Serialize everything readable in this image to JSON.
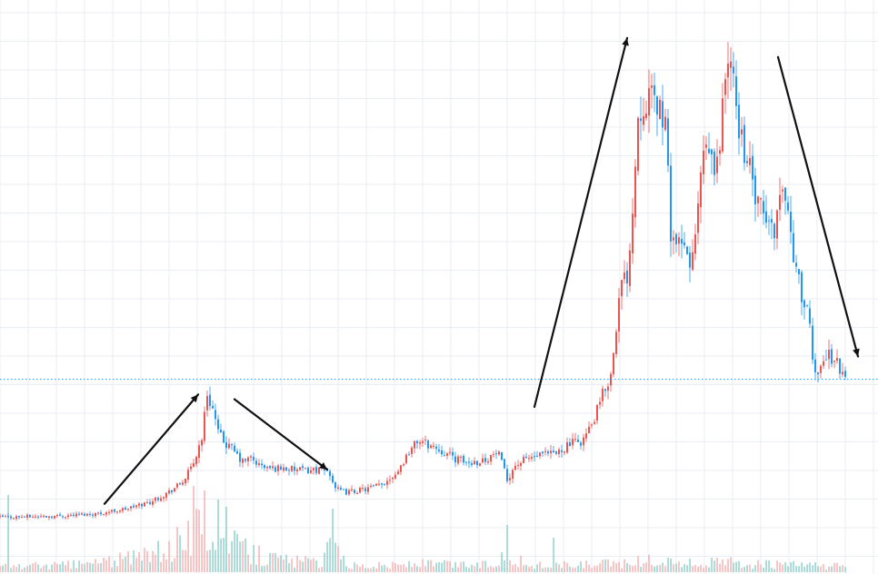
{
  "chart_data": {
    "type": "candlestick",
    "title": "",
    "xlabel": "",
    "ylabel": "",
    "grid": true,
    "legend": "none",
    "ylim": [
      0,
      600
    ],
    "volume_ylim": [
      0,
      120
    ],
    "reference_line": {
      "value": 201,
      "style": "dotted",
      "color": "#2196f3"
    },
    "colors": {
      "up": "#ef5350",
      "down": "#2196f3",
      "vol_up": "#f4a6a6",
      "vol_down": "#80cbc4",
      "grid": "#e8eef3",
      "annotation": "#111111"
    },
    "close_trend": [
      [
        0,
        56
      ],
      [
        60,
        57
      ],
      [
        110,
        60
      ],
      [
        140,
        65
      ],
      [
        165,
        72
      ],
      [
        185,
        82
      ],
      [
        200,
        92
      ],
      [
        212,
        110
      ],
      [
        222,
        140
      ],
      [
        228,
        186
      ],
      [
        234,
        170
      ],
      [
        240,
        145
      ],
      [
        248,
        133
      ],
      [
        256,
        127
      ],
      [
        266,
        114
      ],
      [
        276,
        118
      ],
      [
        286,
        110
      ],
      [
        298,
        107
      ],
      [
        310,
        108
      ],
      [
        322,
        106
      ],
      [
        336,
        105
      ],
      [
        350,
        106
      ],
      [
        362,
        104
      ],
      [
        370,
        85
      ],
      [
        380,
        82
      ],
      [
        400,
        85
      ],
      [
        420,
        90
      ],
      [
        438,
        105
      ],
      [
        450,
        125
      ],
      [
        460,
        137
      ],
      [
        472,
        132
      ],
      [
        486,
        126
      ],
      [
        500,
        118
      ],
      [
        516,
        113
      ],
      [
        532,
        116
      ],
      [
        548,
        124
      ],
      [
        558,
        95
      ],
      [
        566,
        110
      ],
      [
        580,
        118
      ],
      [
        596,
        121
      ],
      [
        612,
        123
      ],
      [
        626,
        133
      ],
      [
        640,
        136
      ],
      [
        652,
        154
      ],
      [
        664,
        188
      ],
      [
        672,
        205
      ],
      [
        678,
        260
      ],
      [
        684,
        302
      ],
      [
        690,
        310
      ],
      [
        696,
        380
      ],
      [
        702,
        480
      ],
      [
        710,
        498
      ],
      [
        718,
        494
      ],
      [
        726,
        488
      ],
      [
        732,
        466
      ],
      [
        738,
        358
      ],
      [
        746,
        340
      ],
      [
        752,
        338
      ],
      [
        760,
        322
      ],
      [
        766,
        354
      ],
      [
        772,
        428
      ],
      [
        780,
        440
      ],
      [
        788,
        414
      ],
      [
        794,
        478
      ],
      [
        800,
        540
      ],
      [
        806,
        518
      ],
      [
        812,
        472
      ],
      [
        818,
        446
      ],
      [
        826,
        418
      ],
      [
        832,
        385
      ],
      [
        840,
        375
      ],
      [
        846,
        362
      ],
      [
        852,
        360
      ],
      [
        858,
        395
      ],
      [
        864,
        400
      ],
      [
        870,
        352
      ],
      [
        876,
        316
      ],
      [
        882,
        290
      ],
      [
        890,
        262
      ],
      [
        896,
        205
      ],
      [
        904,
        220
      ],
      [
        912,
        226
      ],
      [
        920,
        222
      ],
      [
        926,
        206
      ],
      [
        932,
        200
      ]
    ],
    "volume_trend": [
      [
        0,
        6
      ],
      [
        80,
        8
      ],
      [
        140,
        14
      ],
      [
        180,
        22
      ],
      [
        200,
        32
      ],
      [
        215,
        45
      ],
      [
        228,
        52
      ],
      [
        240,
        40
      ],
      [
        256,
        30
      ],
      [
        270,
        22
      ],
      [
        290,
        16
      ],
      [
        320,
        12
      ],
      [
        350,
        10
      ],
      [
        366,
        28
      ],
      [
        380,
        8
      ],
      [
        420,
        7
      ],
      [
        460,
        9
      ],
      [
        500,
        8
      ],
      [
        540,
        8
      ],
      [
        558,
        20
      ],
      [
        580,
        7
      ],
      [
        620,
        7
      ],
      [
        660,
        8
      ],
      [
        690,
        10
      ],
      [
        720,
        12
      ],
      [
        760,
        9
      ],
      [
        800,
        10
      ],
      [
        840,
        8
      ],
      [
        880,
        7
      ],
      [
        932,
        6
      ]
    ],
    "volume_spikes": [
      {
        "x": 8,
        "value": 85
      },
      {
        "x": 212,
        "value": 95
      },
      {
        "x": 226,
        "value": 90
      },
      {
        "x": 240,
        "value": 80
      },
      {
        "x": 248,
        "value": 72
      },
      {
        "x": 366,
        "value": 70
      },
      {
        "x": 558,
        "value": 52
      },
      {
        "x": 610,
        "value": 38
      }
    ],
    "annotations": [
      {
        "type": "arrow",
        "from": [
          115,
          70
        ],
        "to": [
          218,
          185
        ],
        "head": "end"
      },
      {
        "type": "arrow",
        "from": [
          258,
          180
        ],
        "to": [
          360,
          106
        ],
        "head": "end"
      },
      {
        "type": "arrow",
        "from": [
          588,
          172
        ],
        "to": [
          690,
          560
        ],
        "head": "end"
      },
      {
        "type": "arrow",
        "from": [
          856,
          540
        ],
        "to": [
          944,
          225
        ],
        "head": "end"
      }
    ]
  }
}
